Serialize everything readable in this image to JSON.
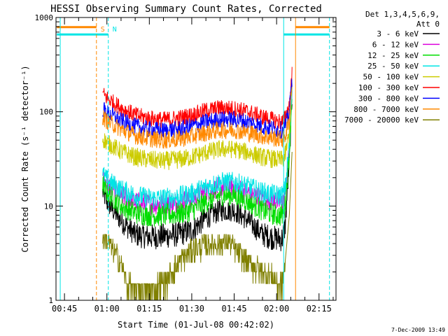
{
  "chart_data": {
    "type": "line",
    "title": "HESSI Observing Summary Count Rates, Corrected",
    "xlabel": "Start Time (01-Jul-08 00:42:02)",
    "ylabel": "Corrected Count Rate (s⁻¹ detector⁻¹)",
    "x_ticks": [
      "00:45",
      "01:00",
      "01:15",
      "01:30",
      "01:45",
      "02:00",
      "02:15"
    ],
    "x_tick_minutes": [
      45,
      60,
      75,
      90,
      105,
      120,
      135
    ],
    "xlim_minutes": [
      42,
      141
    ],
    "y_ticks": [
      "1",
      "10",
      "100",
      "1000"
    ],
    "ylim": [
      1,
      1000
    ],
    "yscale": "log",
    "legend_header": [
      "Det 1,3,4,5,6,9,",
      "Att 0"
    ],
    "legend_position": "right",
    "footer_date": "7-Dec-2009 13:49",
    "series": [
      {
        "name": "3 - 6 keV",
        "color": "#000000",
        "x": [
          58.5,
          60,
          65,
          70,
          75,
          80,
          85,
          90,
          95,
          100,
          105,
          110,
          115,
          120,
          122,
          123,
          124.5,
          125.5
        ],
        "values": [
          14,
          11,
          7,
          5,
          4.7,
          4.8,
          5,
          5.5,
          7.5,
          9,
          9,
          7,
          5,
          4.5,
          4.5,
          6,
          30,
          150
        ]
      },
      {
        "name": "6 - 12 keV",
        "color": "#dd00dd",
        "x": [
          58.5,
          60,
          65,
          70,
          75,
          80,
          85,
          90,
          95,
          100,
          105,
          110,
          115,
          120,
          122,
          123,
          124.5,
          125.5
        ],
        "values": [
          20,
          17,
          13,
          11,
          10.5,
          10.5,
          11,
          12,
          14,
          16,
          16,
          14,
          12,
          11,
          11,
          13,
          40,
          180
        ]
      },
      {
        "name": "12 - 25 keV",
        "color": "#00dd00",
        "x": [
          58.5,
          60,
          65,
          70,
          75,
          80,
          85,
          90,
          95,
          100,
          105,
          110,
          115,
          120,
          122,
          123,
          124.5,
          125.5
        ],
        "values": [
          17,
          14,
          10,
          8.5,
          8,
          8,
          8.3,
          9,
          11,
          13,
          13,
          11,
          9,
          8,
          8,
          10,
          35,
          170
        ]
      },
      {
        "name": "25 - 50 keV",
        "color": "#00e5e5",
        "x": [
          58.5,
          60,
          65,
          70,
          75,
          80,
          85,
          90,
          95,
          100,
          105,
          110,
          115,
          120,
          122,
          123,
          124.5,
          125.5
        ],
        "values": [
          22,
          19,
          15,
          13,
          12,
          12,
          12.5,
          13.5,
          16,
          18,
          18,
          16,
          14,
          13,
          13,
          15,
          45,
          190
        ]
      },
      {
        "name": "50 - 100 keV",
        "color": "#cccc00",
        "x": [
          58.5,
          60,
          65,
          70,
          75,
          80,
          85,
          90,
          95,
          100,
          105,
          110,
          115,
          120,
          122,
          123,
          124.5,
          125.5
        ],
        "values": [
          52,
          47,
          38,
          33,
          31,
          30,
          31,
          33,
          37,
          40,
          40,
          37,
          33,
          31,
          31,
          34,
          60,
          200
        ]
      },
      {
        "name": "100 - 300 keV",
        "color": "#ff0000",
        "x": [
          58.5,
          60,
          65,
          70,
          75,
          80,
          85,
          90,
          95,
          100,
          105,
          110,
          115,
          120,
          122,
          123,
          124.5,
          125.5
        ],
        "values": [
          155,
          140,
          110,
          92,
          85,
          82,
          85,
          92,
          103,
          110,
          108,
          100,
          88,
          80,
          78,
          85,
          120,
          260
        ]
      },
      {
        "name": "300 - 800 keV",
        "color": "#0000ff",
        "x": [
          58.5,
          60,
          65,
          70,
          75,
          80,
          85,
          90,
          95,
          100,
          105,
          110,
          115,
          120,
          122,
          123,
          124.5,
          125.5
        ],
        "values": [
          108,
          98,
          80,
          70,
          65,
          63,
          65,
          70,
          78,
          83,
          83,
          78,
          70,
          65,
          64,
          70,
          100,
          230
        ]
      },
      {
        "name": "800 - 7000 keV",
        "color": "#ff8800",
        "x": [
          58.5,
          60,
          65,
          70,
          75,
          80,
          85,
          90,
          95,
          100,
          105,
          110,
          115,
          120,
          122,
          123,
          124.5,
          125.5
        ],
        "values": [
          88,
          80,
          65,
          56,
          52,
          50,
          51,
          55,
          60,
          64,
          64,
          60,
          55,
          52,
          51,
          55,
          80,
          210
        ]
      },
      {
        "name": "7000 - 20000 keV",
        "color": "#808000",
        "x": [
          58.5,
          60,
          62,
          65,
          67,
          70,
          72,
          75,
          80,
          85,
          88,
          90,
          95,
          100,
          103,
          105,
          110,
          115,
          118,
          120,
          122,
          123,
          124.5,
          125.5
        ],
        "values": [
          5,
          4.5,
          3.5,
          2.5,
          1.5,
          1.3,
          1.3,
          1.3,
          1.5,
          2.5,
          3,
          3.5,
          4,
          4,
          4.5,
          3.5,
          2.5,
          2,
          1.8,
          1.5,
          1.5,
          2.5,
          8,
          40
        ]
      }
    ],
    "markers": [
      {
        "label": "S",
        "color": "#ff8800",
        "style": "dashed",
        "minute": 56.3
      },
      {
        "label": "N",
        "color": "#00e5e5",
        "style": "dashed",
        "minute": 60.5
      },
      {
        "label": "",
        "color": "#00e5e5",
        "style": "solid",
        "minute": 43.5
      },
      {
        "label": "",
        "color": "#00e5e5",
        "style": "solid",
        "minute": 122.5
      },
      {
        "label": "",
        "color": "#ff8800",
        "style": "solid",
        "minute": 126.7
      },
      {
        "label": "",
        "color": "#00e5e5",
        "style": "dashed",
        "minute": 138.7
      }
    ],
    "flag_bars": [
      {
        "color": "#ff8800",
        "y_value": 790,
        "from_minute": 42.3,
        "to_minute": 56.3
      },
      {
        "color": "#00e5e5",
        "y_value": 660,
        "from_minute": 42.3,
        "to_minute": 60.5
      },
      {
        "color": "#00e5e5",
        "y_value": 660,
        "from_minute": 122.5,
        "to_minute": 138.7
      },
      {
        "color": "#ff8800",
        "y_value": 790,
        "from_minute": 126.7,
        "to_minute": 138.7
      }
    ]
  }
}
